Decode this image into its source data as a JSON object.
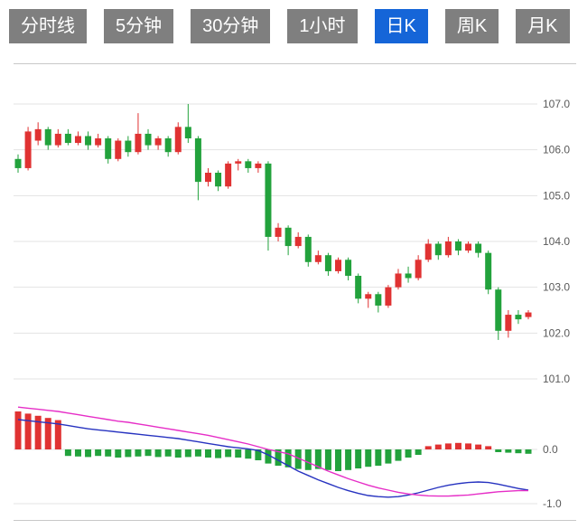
{
  "colors": {
    "background": "#ffffff",
    "tab_bg": "#7f7f7f",
    "tab_active_bg": "#1565d8",
    "tab_text": "#ffffff",
    "up": "#e03232",
    "down": "#22a23c",
    "dif_line": "#2733c0",
    "dea_line": "#e62ec7",
    "grid": "#e3e3e3",
    "border": "#c8c8c8",
    "axis_text": "#5a5a5a"
  },
  "tabs": [
    {
      "key": "time-line",
      "label": "分时线",
      "active": false
    },
    {
      "key": "5-min",
      "label": "5分钟",
      "active": false
    },
    {
      "key": "30-min",
      "label": "30分钟",
      "active": false
    },
    {
      "key": "1-hour",
      "label": "1小时",
      "active": false
    },
    {
      "key": "day-k",
      "label": "日K",
      "active": true
    },
    {
      "key": "week-k",
      "label": "周K",
      "active": false
    },
    {
      "key": "month-k",
      "label": "月K",
      "active": false
    }
  ],
  "chart_data": {
    "type": "candlestick",
    "title": "",
    "grid": true,
    "legend": "none",
    "price_axis": {
      "position": "right",
      "ticks": [
        107.0,
        106.0,
        105.0,
        104.0,
        103.0,
        102.0,
        101.0
      ],
      "ylim": [
        100.8,
        107.3
      ]
    },
    "indicator_axis": {
      "position": "right",
      "ticks": [
        0.0,
        -1.0
      ],
      "ylim": [
        -1.3,
        0.8
      ]
    },
    "candle_format": [
      "open",
      "high",
      "low",
      "close"
    ],
    "candles": [
      [
        105.8,
        105.9,
        105.5,
        105.6
      ],
      [
        105.6,
        106.5,
        105.55,
        106.4
      ],
      [
        106.2,
        106.6,
        106.1,
        106.45
      ],
      [
        106.45,
        106.5,
        106.0,
        106.1
      ],
      [
        106.1,
        106.45,
        106.05,
        106.35
      ],
      [
        106.35,
        106.45,
        106.1,
        106.15
      ],
      [
        106.15,
        106.4,
        106.1,
        106.3
      ],
      [
        106.3,
        106.4,
        106.0,
        106.1
      ],
      [
        106.1,
        106.35,
        106.05,
        106.25
      ],
      [
        106.25,
        106.3,
        105.7,
        105.8
      ],
      [
        105.8,
        106.25,
        105.75,
        106.2
      ],
      [
        106.2,
        106.3,
        105.85,
        105.95
      ],
      [
        105.95,
        106.8,
        105.9,
        106.35
      ],
      [
        106.35,
        106.45,
        106.0,
        106.1
      ],
      [
        106.1,
        106.3,
        106.0,
        106.25
      ],
      [
        106.25,
        106.3,
        105.85,
        105.95
      ],
      [
        105.95,
        106.6,
        105.9,
        106.5
      ],
      [
        106.5,
        107.0,
        106.15,
        106.25
      ],
      [
        106.25,
        106.3,
        104.9,
        105.3
      ],
      [
        105.3,
        105.6,
        105.2,
        105.5
      ],
      [
        105.5,
        105.55,
        105.1,
        105.2
      ],
      [
        105.2,
        105.75,
        105.15,
        105.7
      ],
      [
        105.7,
        105.8,
        105.55,
        105.75
      ],
      [
        105.75,
        105.8,
        105.5,
        105.6
      ],
      [
        105.6,
        105.75,
        105.5,
        105.7
      ],
      [
        105.7,
        105.75,
        103.8,
        104.1
      ],
      [
        104.1,
        104.4,
        104.0,
        104.3
      ],
      [
        104.3,
        104.35,
        103.7,
        103.9
      ],
      [
        103.9,
        104.2,
        103.85,
        104.1
      ],
      [
        104.1,
        104.15,
        103.45,
        103.55
      ],
      [
        103.55,
        103.8,
        103.5,
        103.7
      ],
      [
        103.7,
        103.75,
        103.25,
        103.35
      ],
      [
        103.35,
        103.65,
        103.3,
        103.6
      ],
      [
        103.6,
        103.65,
        103.15,
        103.25
      ],
      [
        103.25,
        103.3,
        102.65,
        102.75
      ],
      [
        102.75,
        102.9,
        102.55,
        102.85
      ],
      [
        102.85,
        102.9,
        102.45,
        102.6
      ],
      [
        102.6,
        103.05,
        102.55,
        103.0
      ],
      [
        103.0,
        103.4,
        102.95,
        103.3
      ],
      [
        103.3,
        103.45,
        103.1,
        103.2
      ],
      [
        103.2,
        103.7,
        103.15,
        103.6
      ],
      [
        103.6,
        104.05,
        103.55,
        103.95
      ],
      [
        103.95,
        104.0,
        103.6,
        103.7
      ],
      [
        103.7,
        104.1,
        103.65,
        104.0
      ],
      [
        104.0,
        104.05,
        103.7,
        103.8
      ],
      [
        103.8,
        104.0,
        103.75,
        103.95
      ],
      [
        103.95,
        104.0,
        103.65,
        103.75
      ],
      [
        103.75,
        103.8,
        102.85,
        102.95
      ],
      [
        102.95,
        103.0,
        101.85,
        102.05
      ],
      [
        102.05,
        102.5,
        101.9,
        102.4
      ],
      [
        102.4,
        102.5,
        102.2,
        102.3
      ],
      [
        102.35,
        102.5,
        102.3,
        102.45
      ]
    ],
    "macd": {
      "histogram": [
        0.7,
        0.66,
        0.62,
        0.58,
        0.54,
        -0.12,
        -0.13,
        -0.14,
        -0.12,
        -0.13,
        -0.15,
        -0.14,
        -0.13,
        -0.12,
        -0.14,
        -0.13,
        -0.15,
        -0.14,
        -0.13,
        -0.15,
        -0.16,
        -0.14,
        -0.15,
        -0.17,
        -0.2,
        -0.26,
        -0.3,
        -0.33,
        -0.36,
        -0.38,
        -0.36,
        -0.38,
        -0.4,
        -0.38,
        -0.35,
        -0.32,
        -0.3,
        -0.26,
        -0.21,
        -0.15,
        -0.1,
        0.06,
        0.09,
        0.11,
        0.12,
        0.11,
        0.09,
        0.06,
        -0.05,
        -0.06,
        -0.07,
        -0.08
      ],
      "dif": [
        0.55,
        0.53,
        0.51,
        0.49,
        0.47,
        0.44,
        0.41,
        0.38,
        0.36,
        0.34,
        0.32,
        0.3,
        0.28,
        0.26,
        0.24,
        0.22,
        0.2,
        0.17,
        0.14,
        0.11,
        0.08,
        0.05,
        0.03,
        0.01,
        -0.02,
        -0.1,
        -0.2,
        -0.3,
        -0.4,
        -0.48,
        -0.56,
        -0.63,
        -0.7,
        -0.76,
        -0.81,
        -0.85,
        -0.87,
        -0.88,
        -0.87,
        -0.84,
        -0.8,
        -0.75,
        -0.7,
        -0.66,
        -0.63,
        -0.61,
        -0.6,
        -0.61,
        -0.64,
        -0.68,
        -0.72,
        -0.75
      ],
      "dea": [
        0.78,
        0.76,
        0.74,
        0.72,
        0.7,
        0.67,
        0.64,
        0.61,
        0.58,
        0.55,
        0.52,
        0.5,
        0.47,
        0.44,
        0.41,
        0.38,
        0.35,
        0.32,
        0.29,
        0.26,
        0.22,
        0.18,
        0.14,
        0.1,
        0.05,
        0.0,
        -0.04,
        -0.08,
        -0.16,
        -0.24,
        -0.32,
        -0.4,
        -0.47,
        -0.54,
        -0.6,
        -0.66,
        -0.71,
        -0.75,
        -0.79,
        -0.82,
        -0.84,
        -0.855,
        -0.86,
        -0.86,
        -0.85,
        -0.84,
        -0.82,
        -0.8,
        -0.78,
        -0.77,
        -0.76,
        -0.76
      ]
    }
  }
}
